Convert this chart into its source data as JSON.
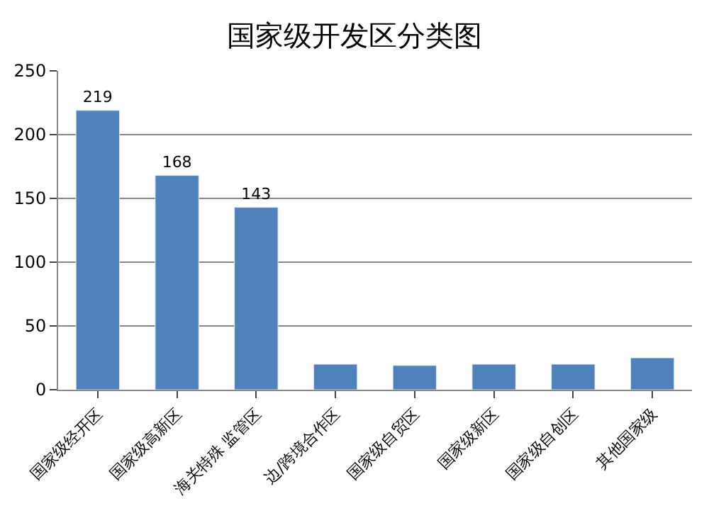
{
  "chart_data": {
    "type": "bar",
    "title": "国家级开发区分类图",
    "categories": [
      "国家级经开区",
      "国家级高新区",
      "海关特殊 监管区",
      "边/跨境合作区",
      "国家级自贸区",
      "国家级新区",
      "国家级自创区",
      "其他国家级"
    ],
    "values": [
      219,
      168,
      143,
      20,
      19,
      20,
      20,
      25
    ],
    "value_labels": [
      "219",
      "168",
      "143",
      null,
      null,
      null,
      null,
      null
    ],
    "color": "#4f81bd",
    "ylim": [
      0,
      250
    ],
    "yticks": [
      0,
      50,
      100,
      150,
      200,
      250
    ],
    "grid": "y",
    "legend": false
  }
}
